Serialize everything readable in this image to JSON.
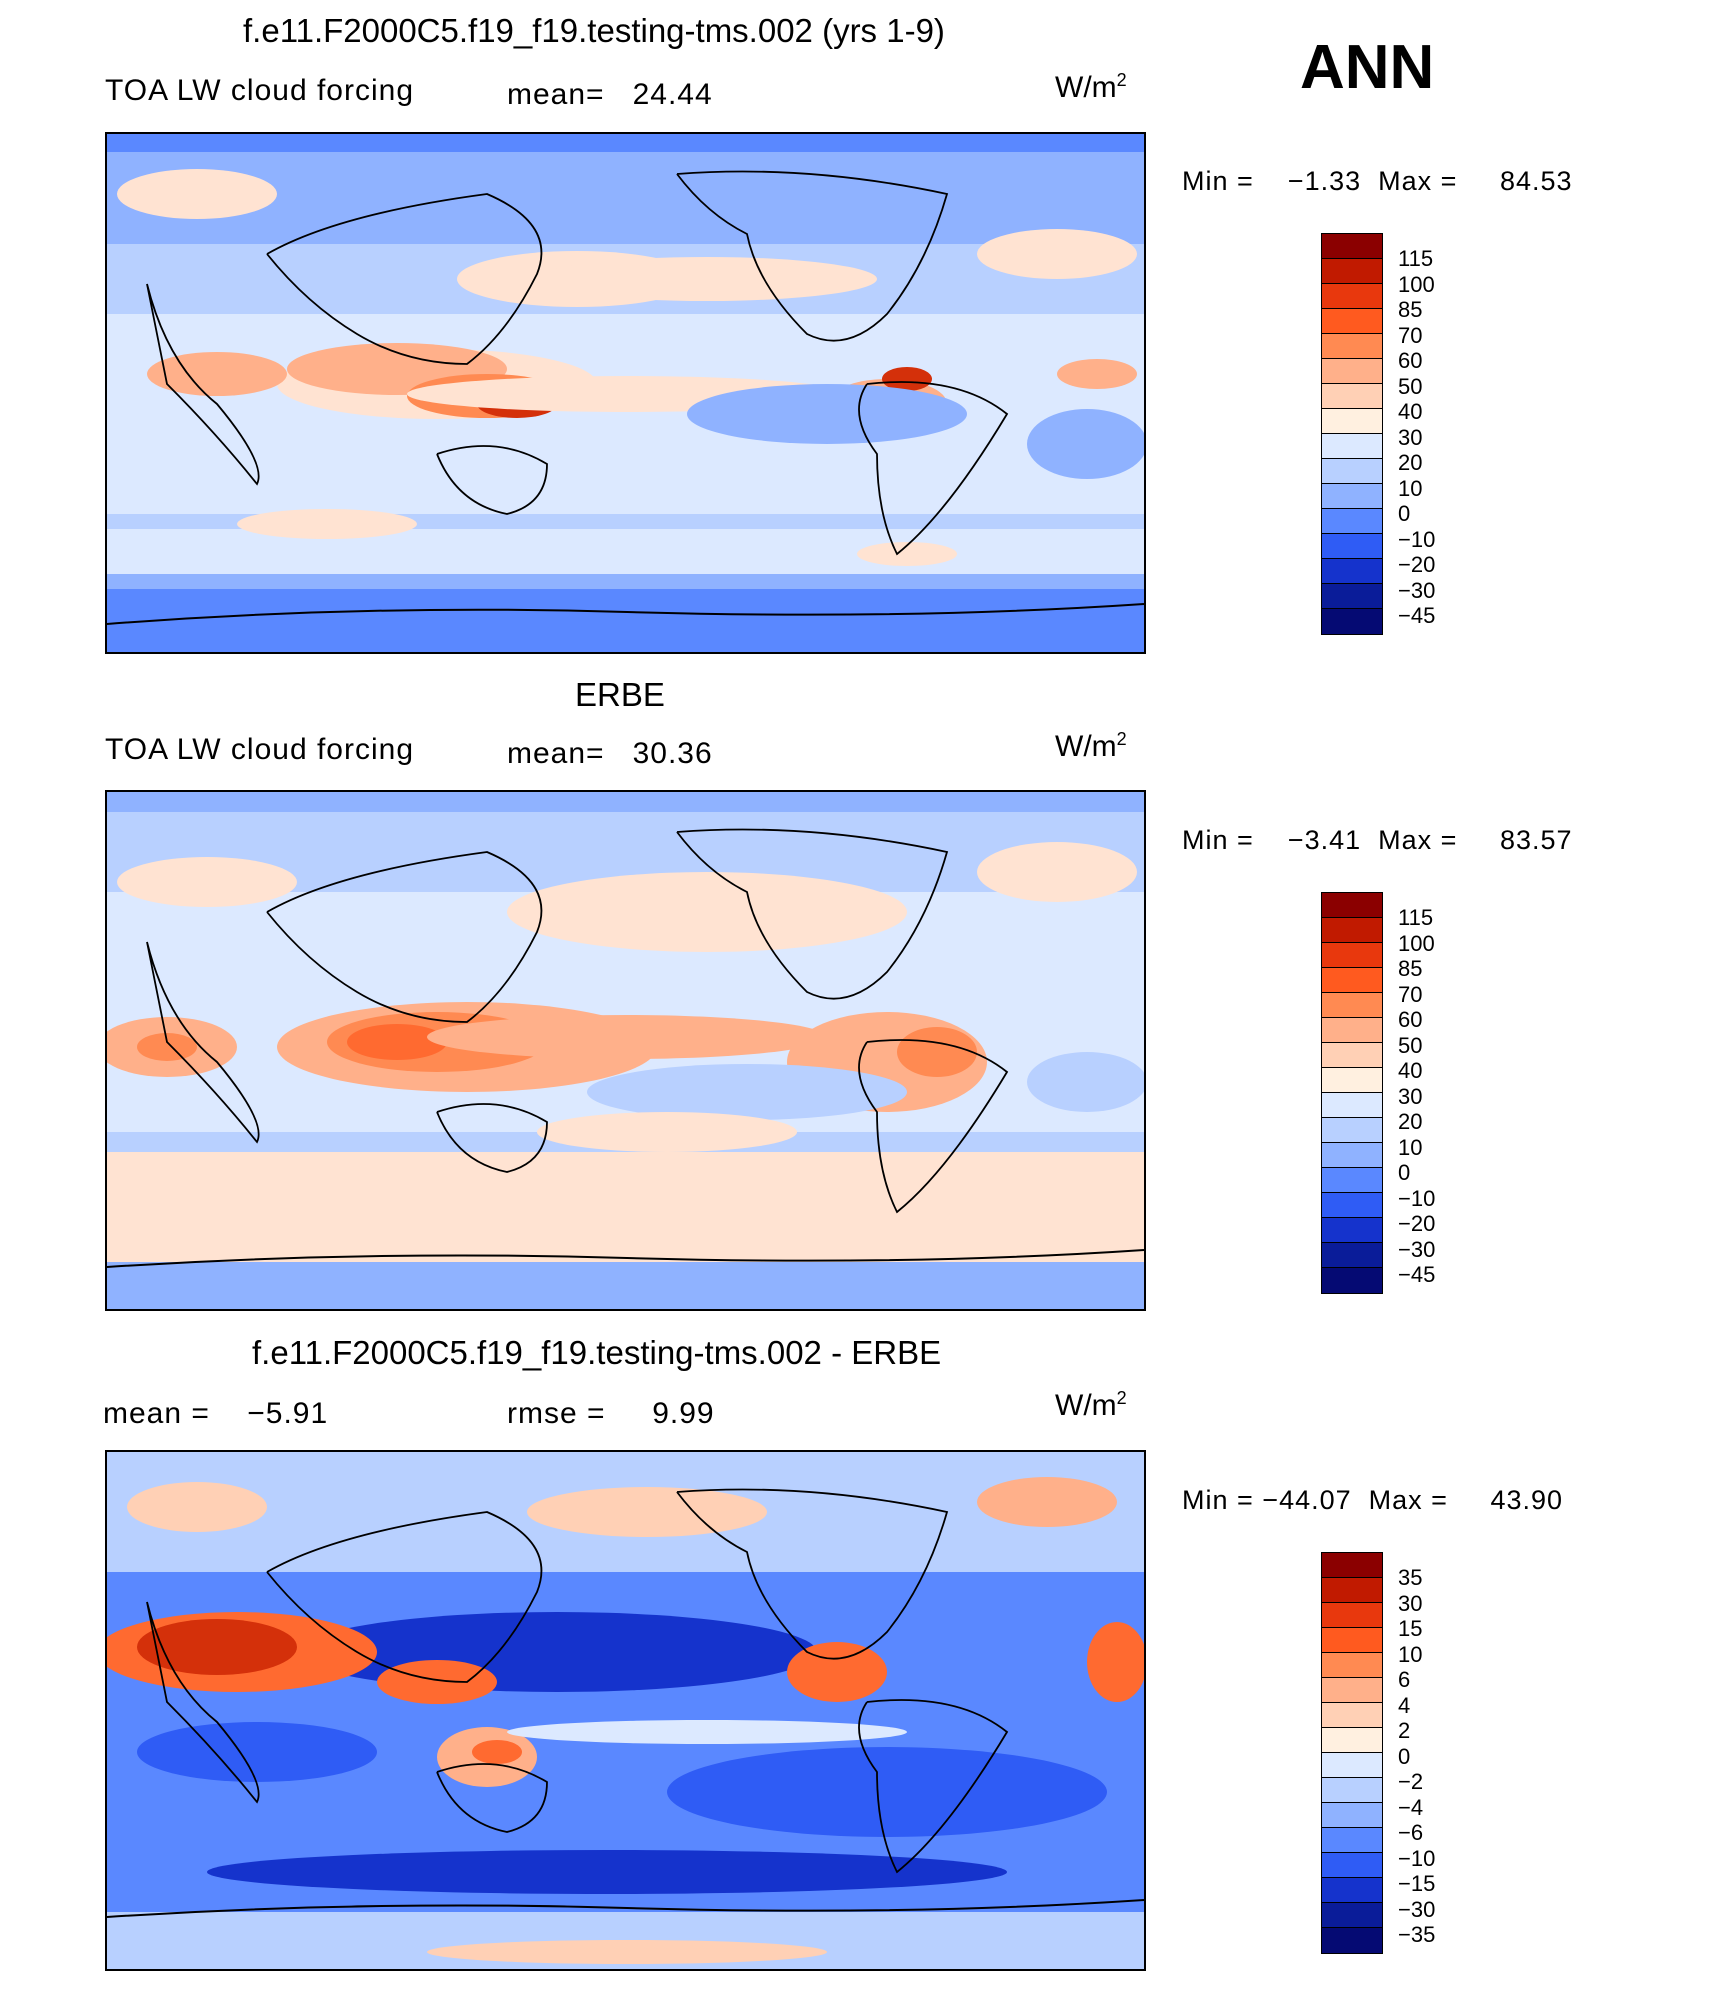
{
  "ann_label": "ANN",
  "panels": [
    {
      "title": "f.e11.F2000C5.f19_f19.testing-tms.002 (yrs 1-9)",
      "variable": "TOA LW cloud forcing",
      "mean_label": "mean=",
      "mean_value": "24.44",
      "units": "W/m",
      "units_sup": "2",
      "min_label": "Min =",
      "min_value": "−1.33",
      "max_label": "Max =",
      "max_value": "84.53",
      "colorbar_levels": [
        "115",
        "100",
        "85",
        "70",
        "60",
        "50",
        "40",
        "30",
        "20",
        "10",
        "0",
        "−10",
        "−20",
        "−30",
        "−45"
      ]
    },
    {
      "title": "ERBE",
      "variable": "TOA LW cloud forcing",
      "mean_label": "mean=",
      "mean_value": "30.36",
      "units": "W/m",
      "units_sup": "2",
      "min_label": "Min =",
      "min_value": "−3.41",
      "max_label": "Max =",
      "max_value": "83.57",
      "colorbar_levels": [
        "115",
        "100",
        "85",
        "70",
        "60",
        "50",
        "40",
        "30",
        "20",
        "10",
        "0",
        "−10",
        "−20",
        "−30",
        "−45"
      ]
    },
    {
      "title": "f.e11.F2000C5.f19_f19.testing-tms.002 - ERBE",
      "mean_label": "mean =",
      "mean_value": "−5.91",
      "rmse_label": "rmse =",
      "rmse_value": "9.99",
      "units": "W/m",
      "units_sup": "2",
      "min_label": "Min =",
      "min_value": "−44.07",
      "max_label": "Max =",
      "max_value": "43.90",
      "colorbar_levels": [
        "35",
        "30",
        "15",
        "10",
        "6",
        "4",
        "2",
        "0",
        "−2",
        "−4",
        "−6",
        "−10",
        "−15",
        "−30",
        "−35"
      ]
    }
  ],
  "colorbar_colors": [
    "#8b0000",
    "#c11a00",
    "#e8380d",
    "#ff5a1f",
    "#ff8a52",
    "#ffb08a",
    "#ffd0b5",
    "#fff0e0",
    "#dce9ff",
    "#b8d0ff",
    "#8fb2ff",
    "#5a88ff",
    "#2f5cf5",
    "#1533cc",
    "#0a1c99",
    "#050a73"
  ],
  "map_palette": {
    "deep_blue": "#1533cc",
    "mid_blue": "#5a88ff",
    "light_blue": "#b8d0ff",
    "pale_blue": "#dce9ff",
    "pale_orange": "#ffe3d2",
    "orange": "#ffb08a",
    "red_orange": "#ff6a30",
    "red": "#d4300a"
  }
}
